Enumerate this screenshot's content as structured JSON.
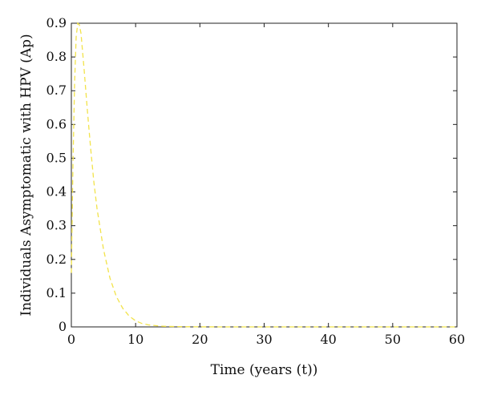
{
  "chart_data": {
    "type": "line",
    "title": "",
    "xlabel": "Time (years (t))",
    "ylabel": "Individuals Asymptomatic with HPV (Ap)",
    "xlim": [
      0,
      60
    ],
    "ylim": [
      0,
      0.9
    ],
    "xticks": [
      "0",
      "10",
      "20",
      "30",
      "40",
      "50",
      "60"
    ],
    "yticks": [
      "0",
      "0.1",
      "0.2",
      "0.3",
      "0.4",
      "0.5",
      "0.6",
      "0.7",
      "0.8",
      "0.9"
    ],
    "grid": false,
    "line_style": "dashed",
    "series": [
      {
        "name": "",
        "color": "#f2e34a",
        "x": [
          0,
          0.25,
          0.5,
          0.75,
          1.0,
          1.25,
          1.5,
          2,
          2.5,
          3,
          3.5,
          4,
          5,
          6,
          7,
          8,
          9,
          10,
          11,
          12,
          14,
          16,
          18,
          20,
          25,
          30,
          40,
          50,
          60
        ],
        "y": [
          0.16,
          0.48,
          0.72,
          0.86,
          0.9,
          0.895,
          0.87,
          0.76,
          0.64,
          0.53,
          0.43,
          0.35,
          0.23,
          0.145,
          0.09,
          0.055,
          0.032,
          0.018,
          0.01,
          0.006,
          0.002,
          0.001,
          0.0005,
          0.0002,
          0,
          0,
          0,
          0,
          0
        ]
      }
    ]
  }
}
